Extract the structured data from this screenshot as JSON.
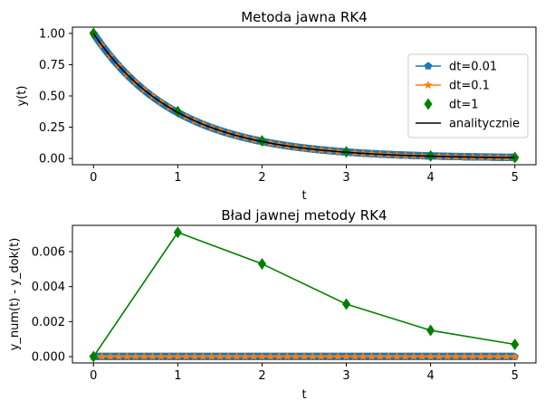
{
  "figure": {
    "background": "#ffffff"
  },
  "chart_data": [
    {
      "type": "line",
      "title": "Metoda jawna RK4",
      "xlabel": "t",
      "ylabel": "y(t)",
      "xlim": [
        -0.25,
        5.25
      ],
      "ylim": [
        -0.05,
        1.05
      ],
      "xticks": [
        0,
        1,
        2,
        3,
        4,
        5
      ],
      "xtick_labels": [
        "0",
        "1",
        "2",
        "3",
        "4",
        "5"
      ],
      "yticks": [
        0.0,
        0.25,
        0.5,
        0.75,
        1.0
      ],
      "ytick_labels": [
        "0.00",
        "0.25",
        "0.50",
        "0.75",
        "1.00"
      ],
      "legend": {
        "placement": "center-right"
      },
      "series": [
        {
          "name": "dt=0.01",
          "color": "#1f77b4",
          "marker": "pentagon",
          "style": "line",
          "t_start": 0,
          "t_end": 5,
          "dt": 0.01,
          "function": "exp(-t)"
        },
        {
          "name": "dt=0.1",
          "color": "#ff7f0e",
          "marker": "star",
          "style": "line",
          "t_start": 0,
          "t_end": 5,
          "dt": 0.1,
          "function": "exp(-t)"
        },
        {
          "name": "dt=1",
          "color": "#008000",
          "marker": "thin-diamond",
          "style": "markers",
          "x": [
            0,
            1,
            2,
            3,
            4,
            5
          ],
          "values": [
            1.0,
            0.375,
            0.1406,
            0.0527,
            0.0198,
            0.0074
          ]
        },
        {
          "name": "analitycznie",
          "color": "#000000",
          "marker": "none",
          "style": "line",
          "t_start": 0,
          "t_end": 5,
          "dt": 0.05,
          "function": "exp(-t)"
        }
      ]
    },
    {
      "type": "line",
      "title": "Bład jawnej metody RK4",
      "xlabel": "t",
      "ylabel": "y_num(t) - y_dok(t)",
      "xlim": [
        -0.25,
        5.25
      ],
      "ylim": [
        -0.00036,
        0.0075
      ],
      "xticks": [
        0,
        1,
        2,
        3,
        4,
        5
      ],
      "xtick_labels": [
        "0",
        "1",
        "2",
        "3",
        "4",
        "5"
      ],
      "yticks": [
        0.0,
        0.002,
        0.004,
        0.006
      ],
      "ytick_labels": [
        "0.000",
        "0.002",
        "0.004",
        "0.006"
      ],
      "series": [
        {
          "name": "dt=0.01",
          "color": "#1f77b4",
          "marker": "pentagon",
          "style": "line",
          "t_start": 0,
          "t_end": 5,
          "dt": 0.01,
          "constant": 0.0
        },
        {
          "name": "dt=0.1",
          "color": "#ff7f0e",
          "marker": "star",
          "style": "line",
          "t_start": 0,
          "t_end": 5,
          "dt": 0.1,
          "constant": 0.0
        },
        {
          "name": "dt=1",
          "color": "#008000",
          "marker": "thin-diamond",
          "style": "line+markers",
          "x": [
            0,
            1,
            2,
            3,
            4,
            5
          ],
          "values": [
            0.0,
            0.0071,
            0.0053,
            0.003,
            0.0015,
            0.0007
          ]
        }
      ]
    }
  ]
}
